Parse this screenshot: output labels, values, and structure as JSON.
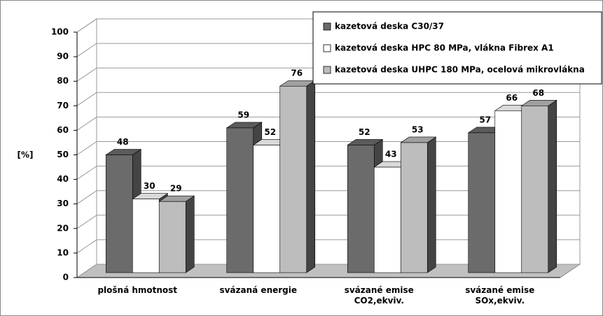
{
  "chart_data": {
    "type": "bar3d",
    "ylabel": "[%]",
    "categories": [
      "plošná hmotnost",
      "svázaná energie",
      "svázané emise\nCO2,ekviv.",
      "svázané emise\nSOx,ekviv."
    ],
    "series": [
      {
        "name": "kazetová deska C30/37",
        "color": "#6b6b6b",
        "values": [
          48,
          59,
          52,
          57
        ]
      },
      {
        "name": "kazetová deska HPC 80 MPa, vlákna Fibrex A1",
        "color": "#ffffff",
        "values": [
          30,
          52,
          43,
          66
        ]
      },
      {
        "name": "kazetová deska UHPC 180 MPa, ocelová mikrovlákna",
        "color": "#bdbdbd",
        "values": [
          29,
          76,
          53,
          68
        ]
      }
    ],
    "ylim": [
      0,
      100
    ],
    "yticks": [
      0,
      10,
      20,
      30,
      40,
      50,
      60,
      70,
      80,
      90,
      100
    ],
    "grid": true,
    "legend": "top-right"
  }
}
